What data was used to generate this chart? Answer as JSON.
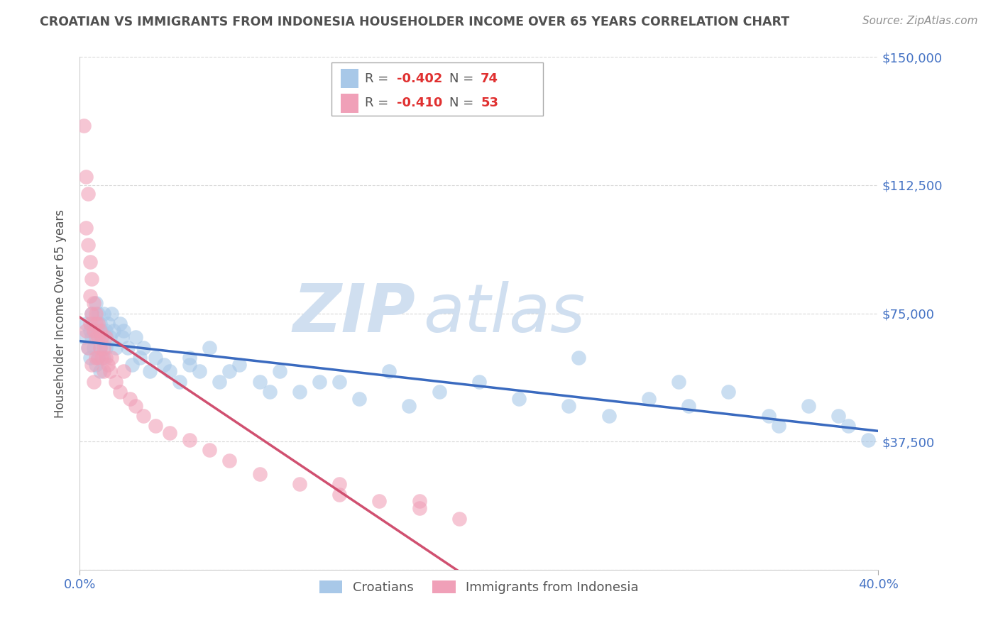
{
  "title": "CROATIAN VS IMMIGRANTS FROM INDONESIA HOUSEHOLDER INCOME OVER 65 YEARS CORRELATION CHART",
  "source": "Source: ZipAtlas.com",
  "ylabel": "Householder Income Over 65 years",
  "yticks": [
    0,
    37500,
    75000,
    112500,
    150000
  ],
  "ytick_labels": [
    "",
    "$37,500",
    "$75,000",
    "$112,500",
    "$150,000"
  ],
  "xlim": [
    0,
    0.4
  ],
  "ylim": [
    0,
    150000
  ],
  "croatian_label": "Croatians",
  "indonesia_label": "Immigrants from Indonesia",
  "blue_color": "#a8c8e8",
  "pink_color": "#f0a0b8",
  "blue_line_color": "#3a6abf",
  "pink_line_color": "#d05070",
  "title_color": "#505050",
  "source_color": "#909090",
  "ytick_color": "#4472c4",
  "xtick_color": "#4472c4",
  "watermark_zip": "ZIP",
  "watermark_atlas": "atlas",
  "watermark_color": "#d0dff0",
  "grid_color": "#d8d8d8",
  "blue_R": -0.402,
  "blue_N": 74,
  "pink_R": -0.41,
  "pink_N": 53,
  "blue_scatter_x": [
    0.002,
    0.003,
    0.004,
    0.005,
    0.005,
    0.006,
    0.006,
    0.007,
    0.007,
    0.008,
    0.008,
    0.008,
    0.009,
    0.009,
    0.009,
    0.01,
    0.01,
    0.01,
    0.011,
    0.011,
    0.012,
    0.012,
    0.013,
    0.013,
    0.014,
    0.015,
    0.016,
    0.017,
    0.018,
    0.02,
    0.021,
    0.022,
    0.024,
    0.026,
    0.028,
    0.03,
    0.032,
    0.035,
    0.038,
    0.042,
    0.045,
    0.05,
    0.055,
    0.06,
    0.065,
    0.07,
    0.08,
    0.09,
    0.1,
    0.11,
    0.12,
    0.14,
    0.155,
    0.165,
    0.18,
    0.2,
    0.22,
    0.245,
    0.265,
    0.285,
    0.305,
    0.325,
    0.345,
    0.365,
    0.385,
    0.395,
    0.25,
    0.3,
    0.35,
    0.38,
    0.055,
    0.075,
    0.095,
    0.13
  ],
  "blue_scatter_y": [
    68000,
    72000,
    65000,
    70000,
    62000,
    75000,
    68000,
    72000,
    65000,
    78000,
    70000,
    60000,
    75000,
    68000,
    62000,
    72000,
    65000,
    58000,
    70000,
    68000,
    75000,
    62000,
    70000,
    65000,
    72000,
    68000,
    75000,
    70000,
    65000,
    72000,
    68000,
    70000,
    65000,
    60000,
    68000,
    62000,
    65000,
    58000,
    62000,
    60000,
    58000,
    55000,
    62000,
    58000,
    65000,
    55000,
    60000,
    55000,
    58000,
    52000,
    55000,
    50000,
    58000,
    48000,
    52000,
    55000,
    50000,
    48000,
    45000,
    50000,
    48000,
    52000,
    45000,
    48000,
    42000,
    38000,
    62000,
    55000,
    42000,
    45000,
    60000,
    58000,
    52000,
    55000
  ],
  "pink_scatter_x": [
    0.002,
    0.003,
    0.003,
    0.004,
    0.004,
    0.005,
    0.005,
    0.006,
    0.006,
    0.007,
    0.007,
    0.008,
    0.008,
    0.008,
    0.009,
    0.009,
    0.009,
    0.01,
    0.01,
    0.011,
    0.011,
    0.012,
    0.012,
    0.013,
    0.013,
    0.014,
    0.015,
    0.016,
    0.018,
    0.02,
    0.022,
    0.025,
    0.028,
    0.032,
    0.038,
    0.045,
    0.055,
    0.065,
    0.075,
    0.09,
    0.11,
    0.13,
    0.15,
    0.17,
    0.19,
    0.003,
    0.004,
    0.005,
    0.006,
    0.007,
    0.008,
    0.13,
    0.17
  ],
  "pink_scatter_y": [
    130000,
    115000,
    100000,
    95000,
    110000,
    80000,
    90000,
    75000,
    85000,
    78000,
    70000,
    72000,
    68000,
    75000,
    68000,
    72000,
    62000,
    65000,
    70000,
    68000,
    62000,
    65000,
    58000,
    62000,
    68000,
    60000,
    58000,
    62000,
    55000,
    52000,
    58000,
    50000,
    48000,
    45000,
    42000,
    40000,
    38000,
    35000,
    32000,
    28000,
    25000,
    22000,
    20000,
    18000,
    15000,
    70000,
    65000,
    72000,
    60000,
    55000,
    62000,
    25000,
    20000
  ]
}
